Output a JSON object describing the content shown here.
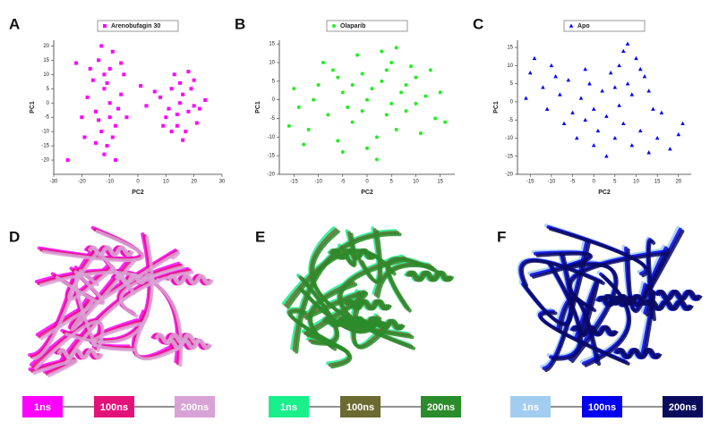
{
  "chart_data": [
    {
      "type": "scatter",
      "panel": "A",
      "x_label": "PC2",
      "y_label": "PC1",
      "xlim": [
        -30,
        30
      ],
      "xticks": [
        -30,
        -20,
        -10,
        0,
        10,
        20,
        30
      ],
      "ylim": [
        -25,
        22
      ],
      "yticks": [
        -20,
        -15,
        -10,
        -5,
        0,
        5,
        10,
        15,
        20
      ],
      "series": [
        {
          "name": "Arenobufagin 30",
          "color": "#ff00ff",
          "marker": "square",
          "x": [
            -12,
            -15,
            -10,
            -8,
            -14,
            -11,
            -18,
            -6,
            -13,
            -9,
            -16,
            -12,
            -7,
            -20,
            -10,
            -14,
            -5,
            -17,
            -11,
            -9,
            -22,
            -13,
            -8,
            -15,
            -4,
            -19,
            -12,
            -6,
            -10,
            -25,
            15,
            12,
            18,
            10,
            20,
            14,
            16,
            22,
            8,
            13,
            17,
            19,
            11,
            21,
            15,
            9,
            24,
            14,
            18,
            6,
            16,
            3,
            12,
            20,
            1
          ],
          "y": [
            5,
            -3,
            12,
            -8,
            15,
            -15,
            2,
            3,
            -10,
            18,
            8,
            -18,
            -2,
            -5,
            0,
            -6,
            10,
            12,
            7,
            -12,
            14,
            20,
            -20,
            -14,
            -5,
            -12,
            10,
            14,
            -5,
            -20,
            0,
            5,
            -3,
            -5,
            8,
            -8,
            3,
            -2,
            2,
            10,
            -10,
            5,
            -2,
            -7,
            7,
            -8,
            1,
            -4,
            11,
            4,
            -13,
            -1,
            -10,
            -1,
            6
          ]
        }
      ]
    },
    {
      "type": "scatter",
      "panel": "B",
      "x_label": "PC2",
      "y_label": "PC1",
      "xlim": [
        -18,
        18
      ],
      "xticks": [
        -15,
        -10,
        -5,
        0,
        5,
        10,
        15
      ],
      "ylim": [
        -20,
        16
      ],
      "yticks": [
        -20,
        -15,
        -10,
        -5,
        0,
        5,
        10,
        15
      ],
      "series": [
        {
          "name": "Olaparib",
          "color": "#22ee22",
          "marker": "circle",
          "x": [
            0,
            3,
            -5,
            8,
            -10,
            5,
            -3,
            12,
            -14,
            2,
            -7,
            6,
            10,
            -2,
            -12,
            14,
            1,
            -4,
            7,
            -8,
            4,
            -1,
            9,
            -6,
            11,
            -15,
            15,
            -9,
            0,
            3,
            -11,
            13,
            -3,
            5,
            -6,
            8,
            -13,
            16,
            2,
            -16,
            6,
            -1,
            10,
            -5,
            4
          ],
          "y": [
            0,
            5,
            2,
            -3,
            4,
            10,
            -6,
            1,
            -2,
            -10,
            8,
            -8,
            6,
            12,
            -8,
            -5,
            3,
            -2,
            2,
            -4,
            -4,
            7,
            9,
            -11,
            -9,
            3,
            2,
            10,
            -13,
            13,
            0,
            8,
            4,
            -1,
            6,
            4,
            -12,
            -6,
            -16,
            -7,
            14,
            -3,
            -1,
            -14,
            8
          ]
        }
      ]
    },
    {
      "type": "scatter",
      "panel": "C",
      "x_label": "PC2",
      "y_label": "PC1",
      "xlim": [
        -18,
        23
      ],
      "xticks": [
        -15,
        -10,
        -5,
        0,
        5,
        10,
        15,
        20
      ],
      "ylim": [
        -20,
        17
      ],
      "yticks": [
        -20,
        -15,
        -10,
        -5,
        0,
        5,
        10,
        15
      ],
      "series": [
        {
          "name": "Apo",
          "color": "#0000ff",
          "marker": "triangle",
          "x": [
            -15,
            -12,
            -10,
            -8,
            -6,
            -5,
            -3,
            -2,
            0,
            1,
            3,
            5,
            7,
            9,
            11,
            13,
            15,
            18,
            20,
            -14,
            -11,
            -7,
            -4,
            0,
            2,
            4,
            6,
            8,
            10,
            12,
            7,
            9,
            11,
            5,
            13,
            6,
            3,
            -1,
            -9,
            16,
            21,
            -16,
            8,
            14,
            -2
          ],
          "y": [
            8,
            4,
            10,
            2,
            6,
            -3,
            1,
            -5,
            -2,
            -8,
            -4,
            -10,
            -6,
            -12,
            -8,
            -14,
            -10,
            -13,
            -9,
            12,
            -2,
            -6,
            -10,
            -12,
            3,
            8,
            10,
            5,
            12,
            7,
            14,
            2,
            9,
            4,
            3,
            -1,
            -15,
            5,
            7,
            -3,
            -6,
            1,
            16,
            -2,
            9
          ]
        }
      ]
    }
  ],
  "structures": [
    {
      "panel": "D",
      "legend": [
        {
          "text": "1ns",
          "color": "#ff00ff"
        },
        {
          "text": "100ns",
          "color": "#e3127a"
        },
        {
          "text": "200ns",
          "color": "#d8a2d6"
        }
      ]
    },
    {
      "panel": "E",
      "legend": [
        {
          "text": "1ns",
          "color": "#19f08c"
        },
        {
          "text": "100ns",
          "color": "#6b6a31"
        },
        {
          "text": "200ns",
          "color": "#2a8c2a"
        }
      ]
    },
    {
      "panel": "F",
      "legend": [
        {
          "text": "1ns",
          "color": "#a2cdf0"
        },
        {
          "text": "100ns",
          "color": "#0000ee"
        },
        {
          "text": "200ns",
          "color": "#0b0b5e"
        }
      ]
    }
  ]
}
